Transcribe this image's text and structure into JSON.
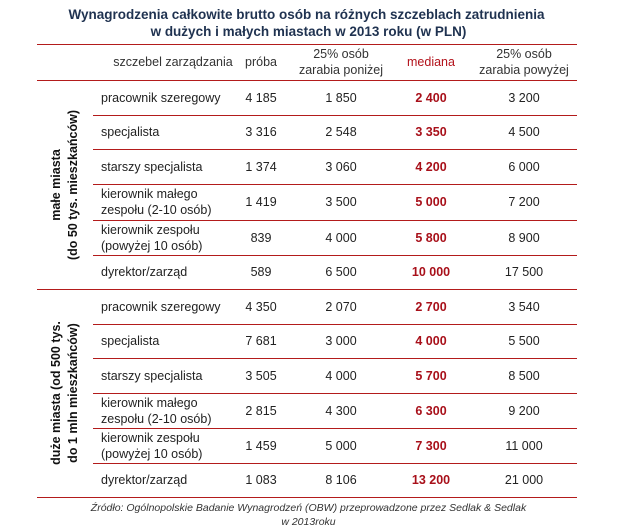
{
  "title": {
    "line1": "Wynagrodzenia całkowite brutto osób na różnych szczeblach zatrudnienia",
    "line2": "w dużych i małych miastach w 2013 roku (w PLN)"
  },
  "table": {
    "headers": {
      "level": "szczebel zarządzania",
      "sample": "próba",
      "p25_1": "25% osób",
      "p25_2": "zarabia poniżej",
      "median": "mediana",
      "p75_1": "25% osób",
      "p75_2": "zarabia powyżej"
    },
    "groups": [
      {
        "label_1": "małe miasta",
        "label_2": "(do 50 tys. mieszkańców)",
        "rows": [
          {
            "level": "pracownik szeregowy",
            "sample": "4 185",
            "p25": "1 850",
            "median": "2 400",
            "p75": "3 200"
          },
          {
            "level": "specjalista",
            "sample": "3 316",
            "p25": "2 548",
            "median": "3 350",
            "p75": "4 500"
          },
          {
            "level": "starszy specjalista",
            "sample": "1 374",
            "p25": "3 060",
            "median": "4 200",
            "p75": "6 000"
          },
          {
            "level": "kierownik małego zespołu (2-10 osób)",
            "sample": "1 419",
            "p25": "3 500",
            "median": "5 000",
            "p75": "7 200"
          },
          {
            "level": "kierownik zespołu (powyżej 10 osób)",
            "sample": "839",
            "p25": "4 000",
            "median": "5 800",
            "p75": "8 900"
          },
          {
            "level": "dyrektor/zarząd",
            "sample": "589",
            "p25": "6 500",
            "median": "10 000",
            "p75": "17 500"
          }
        ]
      },
      {
        "label_1": "duże miasta (od 500 tys.",
        "label_2": "do 1 mln mieszkańców)",
        "rows": [
          {
            "level": "pracownik szeregowy",
            "sample": "4 350",
            "p25": "2 070",
            "median": "2 700",
            "p75": "3 540"
          },
          {
            "level": "specjalista",
            "sample": "7 681",
            "p25": "3 000",
            "median": "4 000",
            "p75": "5 500"
          },
          {
            "level": "starszy specjalista",
            "sample": "3 505",
            "p25": "4 000",
            "median": "5 700",
            "p75": "8 500"
          },
          {
            "level": "kierownik małego zespołu (2-10 osób)",
            "sample": "2 815",
            "p25": "4 300",
            "median": "6 300",
            "p75": "9 200"
          },
          {
            "level": "kierownik zespołu (powyżej 10 osób)",
            "sample": "1 459",
            "p25": "5 000",
            "median": "7 300",
            "p75": "11 000"
          },
          {
            "level": "dyrektor/zarząd",
            "sample": "1 083",
            "p25": "8 106",
            "median": "13 200",
            "p75": "21 000"
          }
        ]
      }
    ]
  },
  "source": {
    "line1": "Źródło: Ogólnopolskie Badanie Wynagrodzeń (OBW) przeprowadzone przez Sedlak & Sedlak",
    "line2": "w 2013roku"
  },
  "colors": {
    "rule": "#b31b1b",
    "median": "#a8101a",
    "title": "#1f3250"
  }
}
